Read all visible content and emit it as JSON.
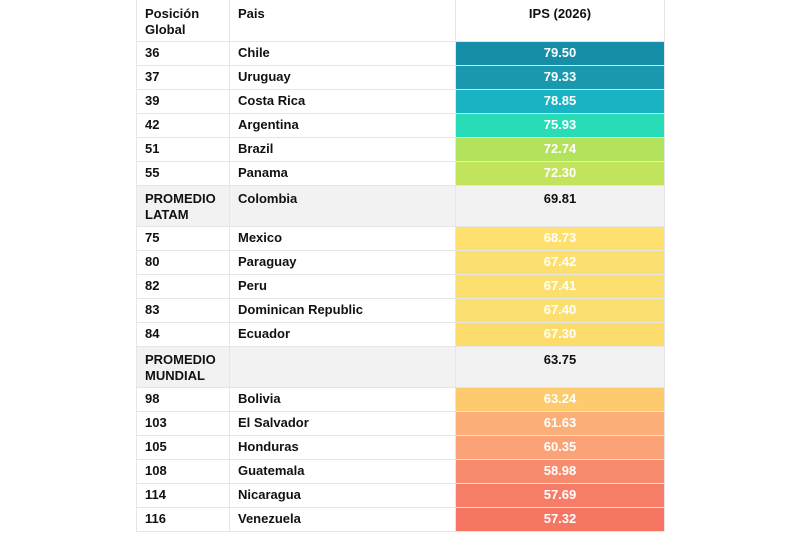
{
  "headers": {
    "position": "Posición Global",
    "country": "Pais",
    "ips": "IPS (2026)"
  },
  "rows": [
    {
      "pos": "36",
      "country": "Chile",
      "ips": "79.50",
      "color": "#178ea8"
    },
    {
      "pos": "37",
      "country": "Uruguay",
      "ips": "79.33",
      "color": "#1a98ae"
    },
    {
      "pos": "39",
      "country": "Costa Rica",
      "ips": "78.85",
      "color": "#1ab3c3"
    },
    {
      "pos": "42",
      "country": "Argentina",
      "ips": "75.93",
      "color": "#27dcb7"
    },
    {
      "pos": "51",
      "country": "Brazil",
      "ips": "72.74",
      "color": "#b3e25c"
    },
    {
      "pos": "55",
      "country": "Panama",
      "ips": "72.30",
      "color": "#c2e35c"
    },
    {
      "pos": "PROMEDIO LATAM",
      "country": "Colombia",
      "ips": "69.81",
      "avg": true
    },
    {
      "pos": "75",
      "country": "Mexico",
      "ips": "68.73",
      "color": "#fde06e"
    },
    {
      "pos": "80",
      "country": "Paraguay",
      "ips": "67.42",
      "color": "#fbe06f"
    },
    {
      "pos": "82",
      "country": "Peru",
      "ips": "67.41",
      "color": "#fbe06f"
    },
    {
      "pos": "83",
      "country": "Dominican Republic",
      "ips": "67.40",
      "color": "#fbe06f"
    },
    {
      "pos": "84",
      "country": "Ecuador",
      "ips": "67.30",
      "color": "#fcdd6c"
    },
    {
      "pos": "PROMEDIO MUNDIAL",
      "country": "",
      "ips": "63.75",
      "avg": true
    },
    {
      "pos": "98",
      "country": "Bolivia",
      "ips": "63.24",
      "color": "#fdcb6e"
    },
    {
      "pos": "103",
      "country": "El Salvador",
      "ips": "61.63",
      "color": "#fbae78"
    },
    {
      "pos": "105",
      "country": "Honduras",
      "ips": "60.35",
      "color": "#fba376"
    },
    {
      "pos": "108",
      "country": "Guatemala",
      "ips": "58.98",
      "color": "#f88b6e"
    },
    {
      "pos": "114",
      "country": "Nicaragua",
      "ips": "57.69",
      "color": "#f67d67"
    },
    {
      "pos": "116",
      "country": "Venezuela",
      "ips": "57.32",
      "color": "#f57663"
    }
  ]
}
